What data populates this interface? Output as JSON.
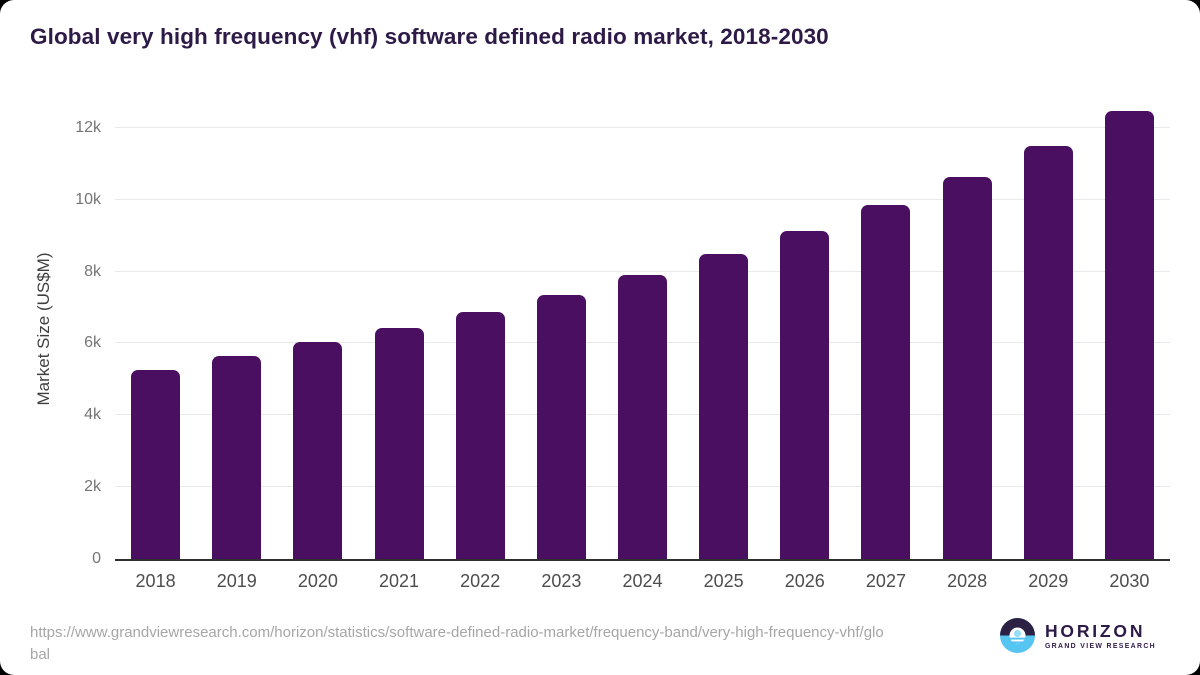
{
  "title": "Global very high frequency (vhf) software defined radio market, 2018-2030",
  "chart_data": {
    "type": "bar",
    "title": "Global very high frequency (vhf) software defined radio market, 2018-2030",
    "categories": [
      "2018",
      "2019",
      "2020",
      "2021",
      "2022",
      "2023",
      "2024",
      "2025",
      "2026",
      "2027",
      "2028",
      "2029",
      "2030"
    ],
    "values": [
      5260,
      5640,
      6030,
      6420,
      6860,
      7340,
      7900,
      8490,
      9130,
      9850,
      10630,
      11490,
      12470
    ],
    "xlabel": "",
    "ylabel": "Market Size (US$M)",
    "ylim": [
      0,
      12800
    ],
    "yticks": [
      {
        "label": "0",
        "value": 0
      },
      {
        "label": "2k",
        "value": 2000
      },
      {
        "label": "4k",
        "value": 4000
      },
      {
        "label": "6k",
        "value": 6000
      },
      {
        "label": "8k",
        "value": 8000
      },
      {
        "label": "10k",
        "value": 10000
      },
      {
        "label": "12k",
        "value": 12000
      }
    ],
    "grid": true,
    "legend": false,
    "bar_color": "#4a0f60"
  },
  "footer": {
    "url_line1": "https://www.grandviewresearch.com/horizon/statistics/software-defined-radio-market/frequency-band/very-high-frequency-vhf/glo",
    "url_line2": "bal"
  },
  "logo": {
    "name": "HORIZON",
    "tagline": "GRAND VIEW RESEARCH",
    "icon": "horizon-sun-circle-icon",
    "purple": "#2c2144",
    "blue": "#56c5f2"
  },
  "colors": {
    "bar": "#4a0f60",
    "title": "#2e1a47",
    "gridline": "#e9e9e9",
    "axis": "#2f2f2f"
  }
}
